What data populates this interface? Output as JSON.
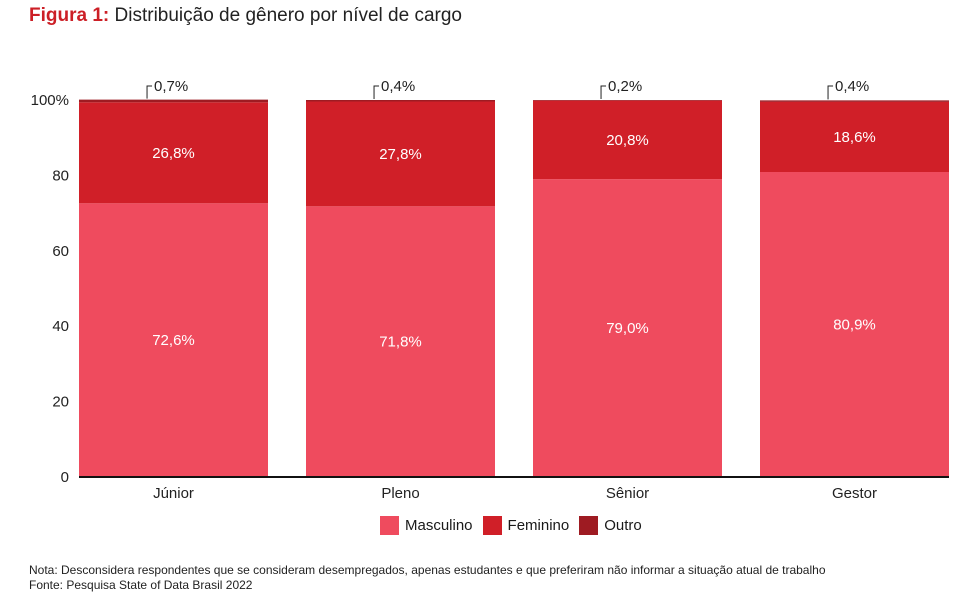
{
  "header": {
    "title_prefix": "Figura 1:",
    "title_text": "Distribuição de gênero por nível de cargo"
  },
  "chart_data": {
    "type": "bar",
    "stacked": true,
    "categories": [
      "Júnior",
      "Pleno",
      "Sênior",
      "Gestor"
    ],
    "series": [
      {
        "name": "Masculino",
        "color": "#ef4b5e",
        "values": [
          72.6,
          71.8,
          79.0,
          80.9
        ],
        "labels": [
          "72,6%",
          "71,8%",
          "79,0%",
          "80,9%"
        ]
      },
      {
        "name": "Feminino",
        "color": "#d01f28",
        "values": [
          26.8,
          27.8,
          20.8,
          18.6
        ],
        "labels": [
          "26,8%",
          "27,8%",
          "20,8%",
          "18,6%"
        ]
      },
      {
        "name": "Outro",
        "color": "#9e1b22",
        "values": [
          0.7,
          0.4,
          0.2,
          0.4
        ],
        "labels": [
          "0,7%",
          "0,4%",
          "0,2%",
          "0,4%"
        ]
      }
    ],
    "ylim": [
      0,
      100
    ],
    "yticks": [
      0,
      20,
      40,
      60,
      80,
      100
    ],
    "ytick_labels": [
      "0",
      "20",
      "40",
      "60",
      "80",
      "100%"
    ],
    "grid": false,
    "legend_position": "bottom"
  },
  "notes": {
    "nota": "Nota: Desconsidera respondentes que se consideram desempregados, apenas estudantes e que preferiram não informar a situação atual de trabalho",
    "fonte": "Fonte: Pesquisa State of Data Brasil 2022"
  }
}
